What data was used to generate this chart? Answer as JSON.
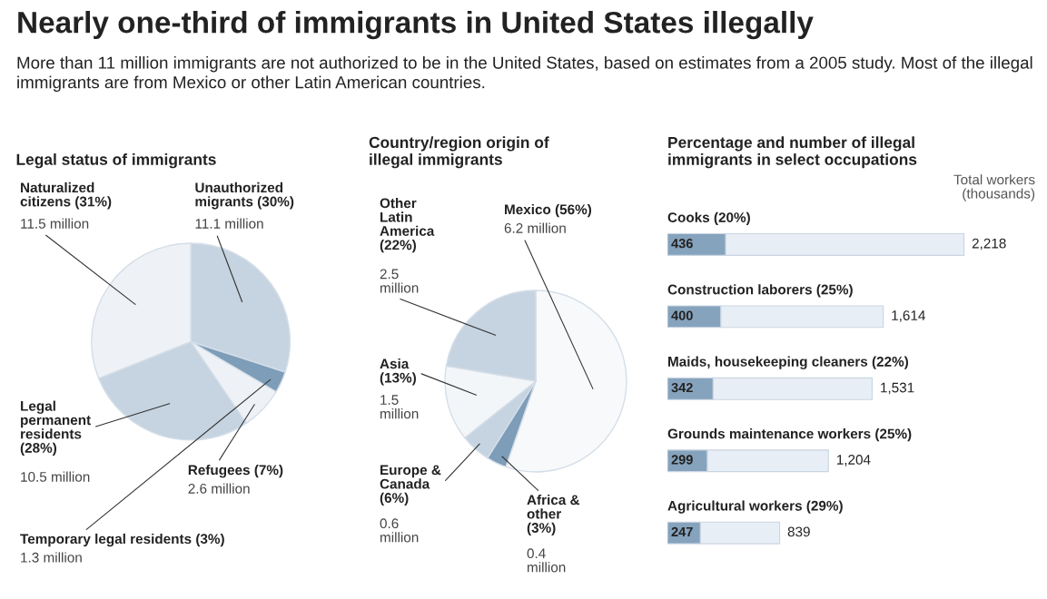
{
  "chart_data": [
    {
      "type": "other",
      "title": "Nearly one-third of immigrants in United States illegally",
      "subtitle": "More than 11 million immigrants are not authorized to be in the United States, based on estimates from a 2005 study. Most of the illegal immigrants are from Mexico or other Latin American countries."
    },
    {
      "type": "pie",
      "title": "Legal status of immigrants",
      "categories": [
        "Unauthorized migrants (30%)",
        "Temporary legal residents (3%)",
        "Refugees (7%)",
        "Legal permanent residents (28%)",
        "Naturalized citizens (31%)"
      ],
      "values": [
        11.1,
        1.3,
        2.6,
        10.5,
        11.5
      ],
      "value_labels": [
        "11.1 million",
        "1.3 million",
        "2.6 million",
        "10.5 million",
        "11.5 million"
      ],
      "colors": [
        "#c6d4e1",
        "#7d9db8",
        "#eef2f6",
        "#c6d4e1",
        "#eef2f6"
      ]
    },
    {
      "type": "pie",
      "title": "Country/region origin of illegal immigrants",
      "categories": [
        "Mexico (56%)",
        "Africa & other (3%)",
        "Europe & Canada (6%)",
        "Asia (13%)",
        "Other Latin America (22%)"
      ],
      "values": [
        6.2,
        0.4,
        0.6,
        1.5,
        2.5
      ],
      "value_labels": [
        "6.2 million",
        "0.4 million",
        "0.6 million",
        "1.5 million",
        "2.5 million"
      ],
      "colors": [
        "#f7f9fb",
        "#7d9db8",
        "#c6d4e1",
        "#f3f6f9",
        "#c6d4e1"
      ]
    },
    {
      "type": "bar",
      "orientation": "horizontal",
      "stacked": true,
      "title": "Percentage and number of illegal immigrants in select occupations",
      "categories": [
        "Cooks (20%)",
        "Construction laborers (25%)",
        "Maids, housekeeping cleaners (22%)",
        "Grounds maintenance workers (25%)",
        "Agricultural workers (29%)"
      ],
      "series": [
        {
          "color": "#86a3bd",
          "values": [
            436,
            400,
            342,
            299,
            247
          ],
          "value_labels": [
            "436",
            "400",
            "342",
            "299",
            "247"
          ]
        },
        {
          "color": "#e8eef5",
          "values": [
            1782,
            1214,
            1189,
            905,
            592
          ]
        }
      ],
      "totals": [
        "2,218",
        "1,614",
        "1,531",
        "1,204",
        "839"
      ],
      "annotations": [
        "Total workers (thousands)"
      ]
    }
  ]
}
